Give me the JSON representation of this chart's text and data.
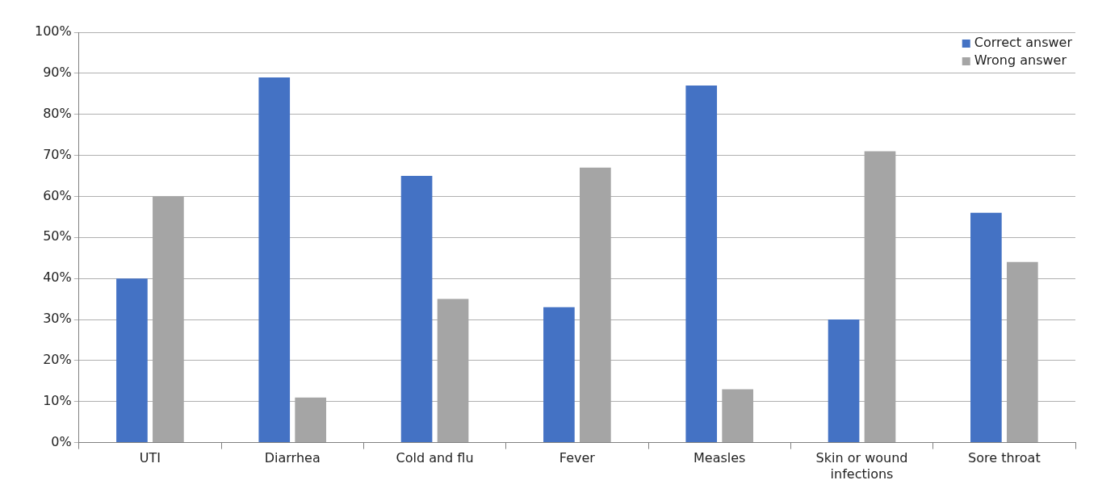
{
  "chart_data": {
    "type": "bar",
    "categories": [
      "UTI",
      "Diarrhea",
      "Cold and flu",
      "Fever",
      "Measles",
      "Skin or wound infections",
      "Sore throat"
    ],
    "series": [
      {
        "name": "Correct answer",
        "color": "#4472c4",
        "values": [
          40,
          89,
          65,
          33,
          87,
          30,
          56
        ]
      },
      {
        "name": "Wrong answer",
        "color": "#a5a5a5",
        "values": [
          60,
          11,
          35,
          67,
          13,
          71,
          44
        ]
      }
    ],
    "ylim": [
      0,
      100
    ],
    "yticks": [
      {
        "value": 0,
        "label": "0%"
      },
      {
        "value": 10,
        "label": "10%"
      },
      {
        "value": 20,
        "label": "20%"
      },
      {
        "value": 30,
        "label": "30%"
      },
      {
        "value": 40,
        "label": "40%"
      },
      {
        "value": 50,
        "label": "50%"
      },
      {
        "value": 60,
        "label": "60%"
      },
      {
        "value": 70,
        "label": "70%"
      },
      {
        "value": 80,
        "label": "80%"
      },
      {
        "value": 90,
        "label": "90%"
      },
      {
        "value": 100,
        "label": "100%"
      }
    ],
    "grid": "y",
    "legend": "top right"
  }
}
